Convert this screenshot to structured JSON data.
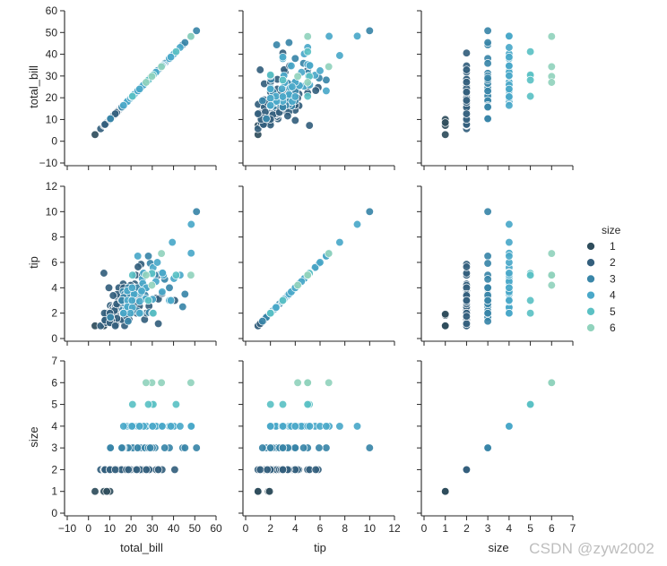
{
  "chart_data": {
    "type": "scatter",
    "kind": "pairplot",
    "hue": "size",
    "hue_title": "size",
    "hue_levels": [
      "1",
      "2",
      "3",
      "4",
      "5",
      "6"
    ],
    "palette": {
      "1": "#2f4d5c",
      "2": "#345f7d",
      "3": "#3a86a8",
      "4": "#4aa8c9",
      "5": "#5bc1c4",
      "6": "#91d3bd"
    },
    "variables": [
      {
        "name": "total_bill",
        "label": "total_bill",
        "lim": [
          -10,
          60
        ],
        "y_ticks": [
          "60",
          "50",
          "40",
          "30",
          "20",
          "10",
          "0",
          "−10"
        ],
        "x_ticks": [
          "−10",
          "0",
          "10",
          "20",
          "30",
          "40",
          "50",
          "60"
        ]
      },
      {
        "name": "tip",
        "label": "tip",
        "lim": [
          0,
          12
        ],
        "y_ticks": [
          "12",
          "10",
          "8",
          "6",
          "4",
          "2",
          "0"
        ],
        "x_ticks": [
          "0",
          "2",
          "4",
          "6",
          "8",
          "10",
          "12"
        ]
      },
      {
        "name": "size",
        "label": "size",
        "lim": [
          0,
          7
        ],
        "y_ticks": [
          "7",
          "6",
          "5",
          "4",
          "3",
          "2",
          "1",
          "0"
        ],
        "x_ticks": [
          "0",
          "1",
          "2",
          "3",
          "4",
          "5",
          "6",
          "7"
        ]
      }
    ],
    "points": [
      [
        16.99,
        1.01,
        2
      ],
      [
        10.34,
        1.66,
        3
      ],
      [
        21.01,
        3.5,
        3
      ],
      [
        23.68,
        3.31,
        2
      ],
      [
        24.59,
        3.61,
        4
      ],
      [
        25.29,
        4.71,
        4
      ],
      [
        8.77,
        2.0,
        2
      ],
      [
        26.88,
        3.12,
        4
      ],
      [
        15.04,
        1.96,
        2
      ],
      [
        14.78,
        3.23,
        2
      ],
      [
        10.27,
        1.71,
        2
      ],
      [
        35.26,
        5.0,
        4
      ],
      [
        15.42,
        1.57,
        2
      ],
      [
        18.43,
        3.0,
        4
      ],
      [
        14.83,
        3.02,
        2
      ],
      [
        21.58,
        3.92,
        2
      ],
      [
        10.33,
        1.67,
        3
      ],
      [
        16.29,
        3.71,
        3
      ],
      [
        16.97,
        3.5,
        3
      ],
      [
        20.65,
        3.35,
        3
      ],
      [
        17.92,
        4.08,
        2
      ],
      [
        20.29,
        2.75,
        2
      ],
      [
        15.77,
        2.23,
        2
      ],
      [
        39.42,
        7.58,
        4
      ],
      [
        19.82,
        3.18,
        2
      ],
      [
        17.81,
        2.34,
        4
      ],
      [
        13.37,
        2.0,
        2
      ],
      [
        12.69,
        2.0,
        2
      ],
      [
        21.7,
        4.3,
        2
      ],
      [
        19.65,
        3.0,
        2
      ],
      [
        9.55,
        1.45,
        2
      ],
      [
        18.35,
        2.5,
        4
      ],
      [
        15.06,
        3.0,
        2
      ],
      [
        20.69,
        2.45,
        4
      ],
      [
        17.78,
        3.27,
        2
      ],
      [
        24.06,
        3.6,
        3
      ],
      [
        16.31,
        2.0,
        3
      ],
      [
        16.93,
        3.07,
        3
      ],
      [
        18.69,
        2.31,
        3
      ],
      [
        31.27,
        5.0,
        3
      ],
      [
        16.04,
        2.24,
        3
      ],
      [
        17.46,
        2.54,
        2
      ],
      [
        13.94,
        3.06,
        2
      ],
      [
        9.68,
        1.32,
        2
      ],
      [
        30.4,
        5.6,
        4
      ],
      [
        18.29,
        3.0,
        2
      ],
      [
        22.23,
        5.0,
        2
      ],
      [
        32.4,
        6.0,
        4
      ],
      [
        28.55,
        2.05,
        3
      ],
      [
        18.04,
        3.0,
        2
      ],
      [
        12.54,
        2.5,
        2
      ],
      [
        10.29,
        2.6,
        2
      ],
      [
        34.81,
        5.2,
        4
      ],
      [
        9.94,
        1.56,
        2
      ],
      [
        25.56,
        4.34,
        4
      ],
      [
        19.49,
        3.51,
        2
      ],
      [
        38.01,
        3.0,
        4
      ],
      [
        26.41,
        1.5,
        2
      ],
      [
        11.24,
        1.76,
        2
      ],
      [
        48.27,
        6.73,
        4
      ],
      [
        20.29,
        3.21,
        2
      ],
      [
        13.81,
        2.0,
        2
      ],
      [
        11.02,
        1.98,
        2
      ],
      [
        18.29,
        3.76,
        4
      ],
      [
        17.59,
        2.64,
        3
      ],
      [
        20.08,
        3.15,
        3
      ],
      [
        16.45,
        2.47,
        2
      ],
      [
        3.07,
        1.0,
        1
      ],
      [
        20.23,
        2.01,
        2
      ],
      [
        15.01,
        2.09,
        2
      ],
      [
        12.02,
        1.97,
        2
      ],
      [
        17.07,
        3.0,
        3
      ],
      [
        26.86,
        3.14,
        2
      ],
      [
        25.28,
        5.0,
        2
      ],
      [
        14.73,
        2.2,
        2
      ],
      [
        10.51,
        1.25,
        2
      ],
      [
        17.92,
        3.08,
        2
      ],
      [
        27.2,
        4.0,
        4
      ],
      [
        22.76,
        3.0,
        2
      ],
      [
        17.29,
        2.71,
        2
      ],
      [
        19.44,
        3.0,
        2
      ],
      [
        16.66,
        3.4,
        2
      ],
      [
        10.07,
        1.83,
        1
      ],
      [
        32.68,
        5.0,
        2
      ],
      [
        15.98,
        2.03,
        2
      ],
      [
        34.83,
        5.17,
        4
      ],
      [
        13.03,
        2.0,
        2
      ],
      [
        18.28,
        4.0,
        2
      ],
      [
        24.71,
        5.85,
        2
      ],
      [
        21.16,
        3.0,
        2
      ],
      [
        28.97,
        3.0,
        2
      ],
      [
        22.49,
        3.5,
        2
      ],
      [
        5.75,
        1.0,
        2
      ],
      [
        16.32,
        4.3,
        2
      ],
      [
        22.75,
        3.25,
        2
      ],
      [
        40.17,
        4.73,
        4
      ],
      [
        27.28,
        4.0,
        2
      ],
      [
        12.03,
        1.5,
        2
      ],
      [
        21.01,
        3.0,
        2
      ],
      [
        12.46,
        1.5,
        2
      ],
      [
        11.35,
        2.5,
        2
      ],
      [
        15.38,
        3.0,
        2
      ],
      [
        44.3,
        2.5,
        3
      ],
      [
        22.42,
        3.48,
        2
      ],
      [
        20.92,
        4.08,
        2
      ],
      [
        15.36,
        1.64,
        2
      ],
      [
        20.49,
        4.06,
        2
      ],
      [
        25.21,
        4.29,
        2
      ],
      [
        18.24,
        3.76,
        2
      ],
      [
        14.31,
        4.0,
        2
      ],
      [
        14.0,
        3.0,
        2
      ],
      [
        7.25,
        1.0,
        1
      ],
      [
        38.07,
        4.0,
        3
      ],
      [
        23.95,
        2.55,
        2
      ],
      [
        25.71,
        4.0,
        3
      ],
      [
        17.31,
        3.5,
        2
      ],
      [
        29.93,
        5.07,
        4
      ],
      [
        10.65,
        1.5,
        2
      ],
      [
        12.43,
        1.8,
        2
      ],
      [
        24.08,
        2.92,
        4
      ],
      [
        11.69,
        2.31,
        2
      ],
      [
        13.42,
        1.68,
        2
      ],
      [
        14.26,
        2.5,
        2
      ],
      [
        15.95,
        2.0,
        2
      ],
      [
        12.48,
        2.52,
        2
      ],
      [
        29.8,
        4.2,
        6
      ],
      [
        8.52,
        1.48,
        2
      ],
      [
        14.52,
        2.0,
        2
      ],
      [
        11.38,
        2.0,
        2
      ],
      [
        22.82,
        2.18,
        3
      ],
      [
        19.08,
        1.5,
        2
      ],
      [
        20.27,
        2.83,
        2
      ],
      [
        11.17,
        1.5,
        2
      ],
      [
        12.26,
        2.0,
        2
      ],
      [
        18.26,
        3.25,
        2
      ],
      [
        8.51,
        1.25,
        2
      ],
      [
        10.33,
        2.0,
        2
      ],
      [
        14.15,
        2.0,
        2
      ],
      [
        16.0,
        2.0,
        2
      ],
      [
        13.16,
        2.75,
        2
      ],
      [
        17.47,
        3.5,
        2
      ],
      [
        34.3,
        6.7,
        6
      ],
      [
        41.19,
        5.0,
        5
      ],
      [
        27.05,
        5.0,
        6
      ],
      [
        16.43,
        2.3,
        2
      ],
      [
        8.35,
        1.5,
        2
      ],
      [
        18.64,
        1.36,
        3
      ],
      [
        11.87,
        1.63,
        2
      ],
      [
        9.78,
        1.73,
        2
      ],
      [
        7.51,
        2.0,
        2
      ],
      [
        14.07,
        2.5,
        2
      ],
      [
        13.13,
        2.0,
        2
      ],
      [
        17.26,
        2.74,
        3
      ],
      [
        24.55,
        2.0,
        4
      ],
      [
        19.77,
        2.0,
        4
      ],
      [
        29.85,
        5.14,
        5
      ],
      [
        48.17,
        5.0,
        6
      ],
      [
        25.0,
        3.75,
        4
      ],
      [
        13.39,
        2.61,
        2
      ],
      [
        16.49,
        2.0,
        4
      ],
      [
        21.5,
        3.5,
        4
      ],
      [
        12.66,
        2.5,
        2
      ],
      [
        16.21,
        2.0,
        3
      ],
      [
        13.81,
        2.0,
        2
      ],
      [
        17.51,
        3.0,
        2
      ],
      [
        24.52,
        3.48,
        3
      ],
      [
        20.76,
        2.24,
        2
      ],
      [
        31.71,
        4.5,
        4
      ],
      [
        10.59,
        1.61,
        2
      ],
      [
        10.63,
        2.0,
        2
      ],
      [
        50.81,
        10.0,
        3
      ],
      [
        15.81,
        3.16,
        2
      ],
      [
        7.25,
        5.15,
        2
      ],
      [
        31.85,
        3.18,
        2
      ],
      [
        16.82,
        4.0,
        2
      ],
      [
        32.9,
        3.11,
        2
      ],
      [
        17.89,
        2.0,
        2
      ],
      [
        14.48,
        2.0,
        2
      ],
      [
        9.6,
        4.0,
        2
      ],
      [
        34.63,
        3.55,
        2
      ],
      [
        34.65,
        3.68,
        4
      ],
      [
        23.33,
        5.65,
        2
      ],
      [
        45.35,
        3.5,
        3
      ],
      [
        23.17,
        6.5,
        4
      ],
      [
        40.55,
        3.0,
        2
      ],
      [
        20.69,
        5.0,
        5
      ],
      [
        20.9,
        3.5,
        3
      ],
      [
        30.46,
        2.0,
        5
      ],
      [
        18.15,
        3.5,
        3
      ],
      [
        23.1,
        4.0,
        3
      ],
      [
        15.69,
        1.5,
        2
      ],
      [
        19.81,
        4.19,
        2
      ],
      [
        28.44,
        2.56,
        2
      ],
      [
        15.48,
        2.02,
        2
      ],
      [
        16.58,
        4.0,
        2
      ],
      [
        7.56,
        1.44,
        2
      ],
      [
        10.34,
        2.0,
        2
      ],
      [
        43.11,
        5.0,
        4
      ],
      [
        13.0,
        2.0,
        2
      ],
      [
        13.51,
        2.0,
        2
      ],
      [
        18.71,
        4.0,
        3
      ],
      [
        12.74,
        2.01,
        2
      ],
      [
        13.0,
        2.0,
        2
      ],
      [
        16.4,
        2.5,
        2
      ],
      [
        20.53,
        4.0,
        4
      ],
      [
        16.47,
        3.23,
        3
      ],
      [
        26.59,
        3.41,
        3
      ],
      [
        38.73,
        3.0,
        4
      ],
      [
        24.27,
        2.03,
        2
      ],
      [
        12.76,
        2.23,
        2
      ],
      [
        30.06,
        2.0,
        3
      ],
      [
        25.89,
        5.16,
        4
      ],
      [
        48.33,
        9.0,
        4
      ],
      [
        13.27,
        2.5,
        2
      ],
      [
        28.17,
        6.5,
        3
      ],
      [
        12.9,
        1.1,
        2
      ],
      [
        28.15,
        3.0,
        5
      ],
      [
        11.59,
        1.5,
        2
      ],
      [
        7.74,
        1.44,
        2
      ],
      [
        30.14,
        3.09,
        4
      ],
      [
        12.16,
        2.2,
        2
      ],
      [
        13.42,
        3.48,
        2
      ],
      [
        8.58,
        1.92,
        1
      ],
      [
        15.98,
        3.0,
        3
      ],
      [
        13.42,
        1.58,
        2
      ],
      [
        16.27,
        2.5,
        2
      ],
      [
        10.09,
        2.0,
        2
      ],
      [
        20.45,
        3.0,
        4
      ],
      [
        13.28,
        2.72,
        2
      ],
      [
        22.12,
        2.88,
        2
      ],
      [
        24.01,
        2.0,
        4
      ],
      [
        15.69,
        3.0,
        3
      ],
      [
        11.61,
        3.39,
        2
      ],
      [
        10.77,
        1.47,
        2
      ],
      [
        15.53,
        3.0,
        2
      ],
      [
        10.07,
        1.25,
        2
      ],
      [
        12.6,
        1.0,
        2
      ],
      [
        32.83,
        1.17,
        2
      ],
      [
        35.83,
        4.67,
        3
      ],
      [
        29.03,
        5.92,
        3
      ],
      [
        27.18,
        2.0,
        2
      ],
      [
        22.67,
        2.0,
        2
      ],
      [
        17.82,
        1.75,
        2
      ],
      [
        18.78,
        3.0,
        2
      ]
    ]
  },
  "watermark": "CSDN @zyw2002"
}
